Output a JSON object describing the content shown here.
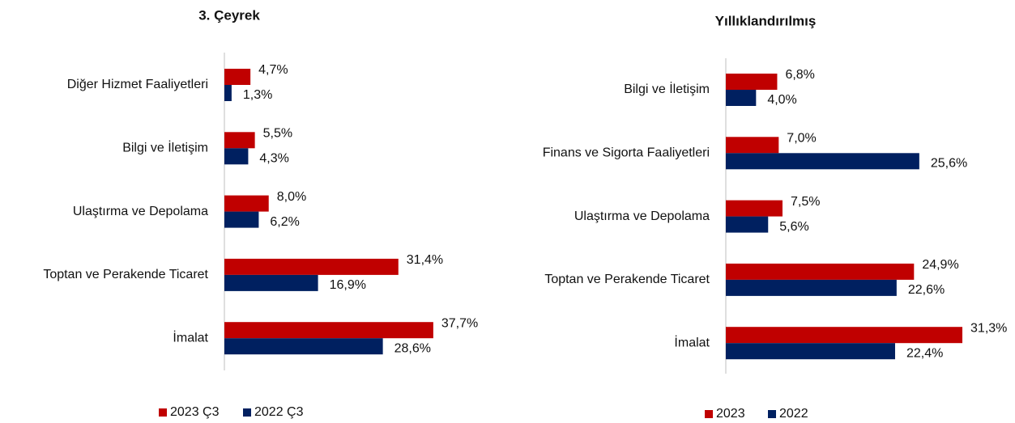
{
  "chart_data": [
    {
      "type": "bar",
      "orientation": "horizontal",
      "title": "3. Çeyrek",
      "categories": [
        "Diğer Hizmet Faaliyetleri",
        "Bilgi ve İletişim",
        "Ulaştırma ve Depolama",
        "Toptan ve Perakende Ticaret",
        "İmalat"
      ],
      "series": [
        {
          "name": "2023 Ç3",
          "color": "#c00000",
          "values": [
            4.7,
            5.5,
            8.0,
            31.4,
            37.7
          ],
          "value_labels": [
            "4,7%",
            "5,5%",
            "8,0%",
            "31,4%",
            "37,7%"
          ]
        },
        {
          "name": "2022 Ç3",
          "color": "#002060",
          "values": [
            1.3,
            4.3,
            6.2,
            16.9,
            28.6
          ],
          "value_labels": [
            "1,3%",
            "4,3%",
            "6,2%",
            "16,9%",
            "28,6%"
          ]
        }
      ]
    },
    {
      "type": "bar",
      "orientation": "horizontal",
      "title": "Yıllıklandırılmış",
      "categories": [
        "Bilgi ve İletişim",
        "Finans ve Sigorta Faaliyetleri",
        "Ulaştırma ve Depolama",
        "Toptan ve Perakende Ticaret",
        "İmalat"
      ],
      "series": [
        {
          "name": "2023",
          "color": "#c00000",
          "values": [
            6.8,
            7.0,
            7.5,
            24.9,
            31.3
          ],
          "value_labels": [
            "6,8%",
            "7,0%",
            "7,5%",
            "24,9%",
            "31,3%"
          ]
        },
        {
          "name": "2022",
          "color": "#002060",
          "values": [
            4.0,
            25.6,
            5.6,
            22.6,
            22.4
          ],
          "value_labels": [
            "4,0%",
            "25,6%",
            "5,6%",
            "22,6%",
            "22,4%"
          ]
        }
      ]
    }
  ]
}
